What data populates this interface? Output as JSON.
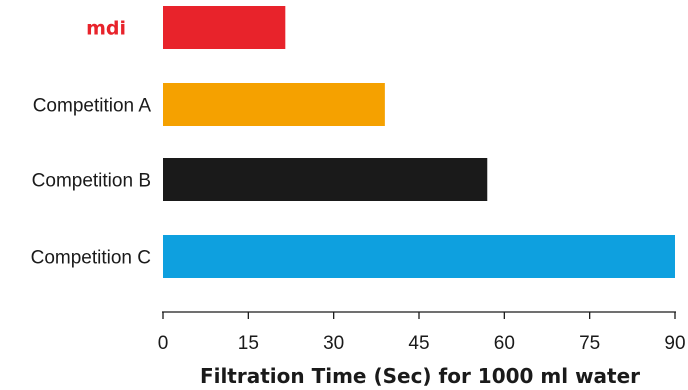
{
  "chart_data": {
    "type": "bar",
    "orientation": "horizontal",
    "categories": [
      "mdi",
      "Competition A",
      "Competition B",
      "Competition C"
    ],
    "values": [
      21.5,
      39,
      57,
      90
    ],
    "colors": [
      "#e8232b",
      "#f5a100",
      "#1a1a1a",
      "#0ea0df"
    ],
    "brand_label_color": "#e8232b",
    "xlabel": "Filtration Time (Sec) for 1000 ml water",
    "xlim": [
      0,
      90
    ],
    "xticks": [
      0,
      15,
      30,
      45,
      60,
      75,
      90
    ],
    "grid": false
  }
}
